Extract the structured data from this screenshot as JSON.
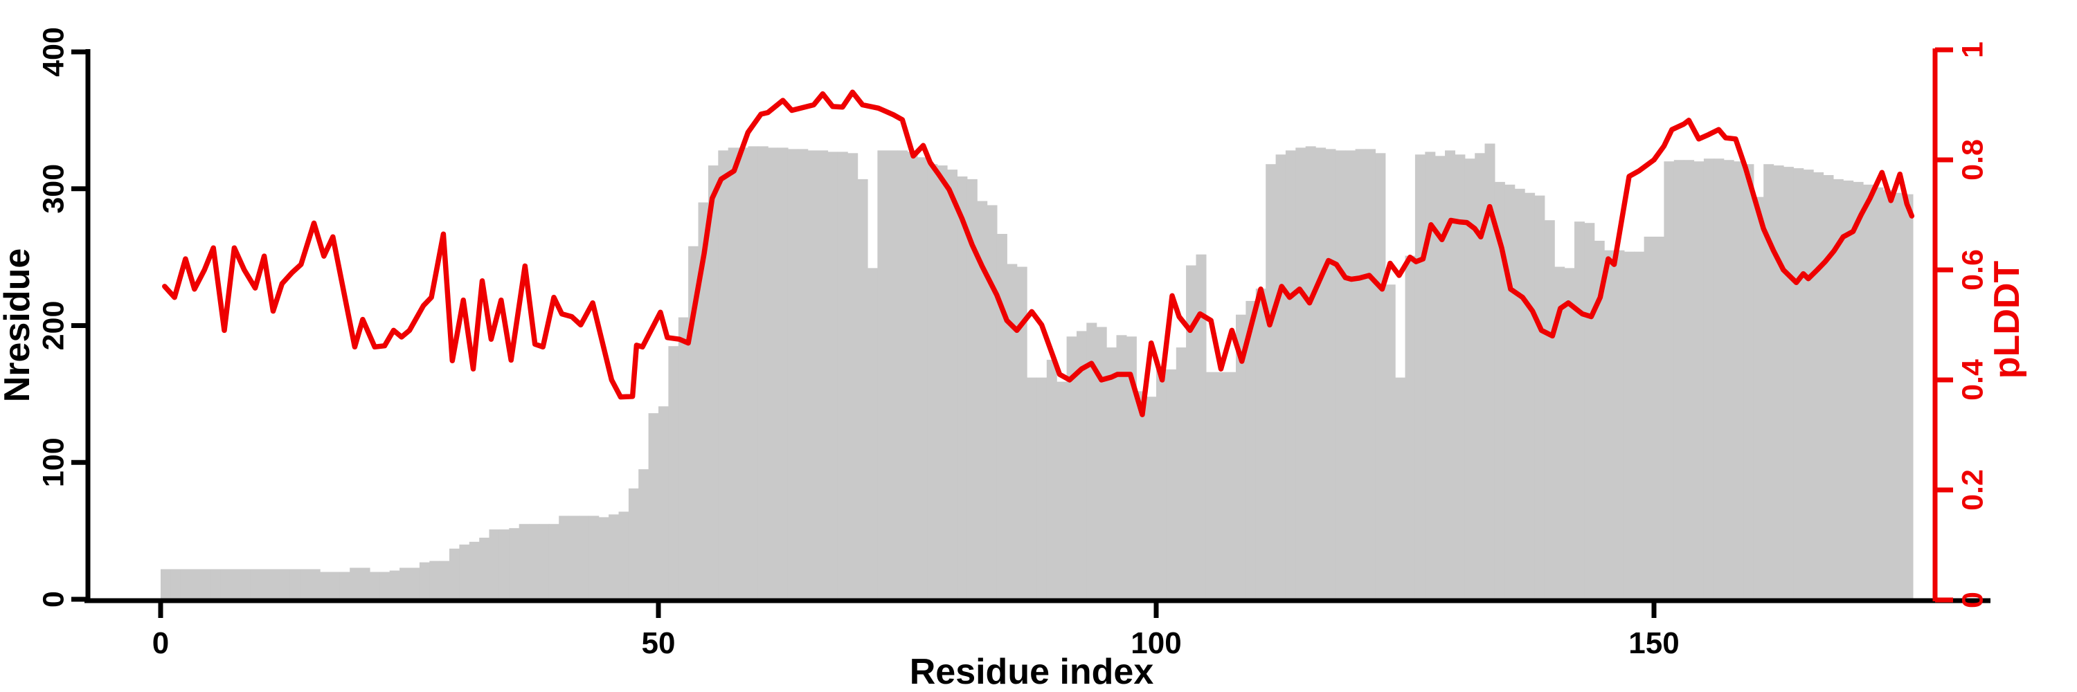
{
  "chart_data": {
    "type": "bar",
    "subtype": "dual-axis bar+line",
    "title": "",
    "xlabel": "Residue index",
    "ylabel_left": "Nresidue",
    "ylabel_right": "pLDDT",
    "x_ticks": [
      0,
      50,
      100,
      150
    ],
    "y_left_ticks": [
      "0",
      "100",
      "200",
      "300",
      "400"
    ],
    "y_right_ticks": [
      "0",
      "0.2",
      "0.4",
      "0.6",
      "0.8",
      "1"
    ],
    "xlim": [
      0,
      176
    ],
    "ylim_left": [
      0,
      400
    ],
    "ylim_right": [
      0,
      1
    ],
    "grid": false,
    "legend": "none",
    "bar_color": "#c9c9c9",
    "line_color": "#ee0000",
    "axis_color": "#000000",
    "right_axis_color": "#ee0000",
    "series": [
      {
        "name": "Nresidue",
        "type": "bar",
        "values": [
          22,
          22,
          22,
          22,
          22,
          22,
          22,
          22,
          22,
          22,
          22,
          22,
          22,
          22,
          22,
          22,
          20,
          20,
          20,
          23,
          23,
          20,
          20,
          21,
          23,
          23,
          27,
          28,
          28,
          37,
          40,
          42,
          45,
          51,
          51,
          52,
          55,
          55,
          55,
          55,
          61,
          61,
          61,
          61,
          60,
          62,
          64,
          81,
          95,
          136,
          141,
          185,
          206,
          258,
          290,
          317,
          328,
          330,
          330,
          331,
          331,
          330,
          330,
          329,
          329,
          328,
          328,
          327,
          327,
          326,
          307,
          242,
          328,
          328,
          328,
          327,
          323,
          318,
          317,
          314,
          309,
          307,
          291,
          288,
          267,
          245,
          243,
          162,
          162,
          175,
          159,
          192,
          196,
          202,
          199,
          184,
          193,
          192,
          152,
          148,
          168,
          168,
          184,
          244,
          252,
          166,
          166,
          166,
          208,
          218,
          227,
          318,
          325,
          328,
          330,
          331,
          330,
          329,
          328,
          328,
          329,
          329,
          326,
          230,
          162,
          251,
          325,
          327,
          324,
          328,
          325,
          322,
          326,
          333,
          305,
          303,
          300,
          297,
          295,
          277,
          243,
          242,
          276,
          275,
          262,
          255,
          255,
          254,
          254,
          265,
          265,
          320,
          321,
          321,
          320,
          322,
          322,
          321,
          320,
          318,
          294,
          318,
          317,
          316,
          315,
          314,
          312,
          310,
          307,
          306,
          305,
          303,
          301,
          299,
          297,
          296
        ]
      },
      {
        "name": "pLDDT",
        "type": "line",
        "points": [
          [
            0.4,
            0.57
          ],
          [
            1.4,
            0.55
          ],
          [
            2.5,
            0.62
          ],
          [
            3.4,
            0.565
          ],
          [
            4.4,
            0.6
          ],
          [
            5.3,
            0.64
          ],
          [
            6.4,
            0.49
          ],
          [
            7.4,
            0.64
          ],
          [
            8.4,
            0.6
          ],
          [
            9.5,
            0.567
          ],
          [
            10.4,
            0.625
          ],
          [
            11.3,
            0.525
          ],
          [
            12.2,
            0.575
          ],
          [
            13.2,
            0.595
          ],
          [
            14.1,
            0.61
          ],
          [
            15.4,
            0.685
          ],
          [
            16.4,
            0.625
          ],
          [
            17.3,
            0.66
          ],
          [
            19.5,
            0.46
          ],
          [
            20.3,
            0.51
          ],
          [
            21.5,
            0.46
          ],
          [
            22.5,
            0.462
          ],
          [
            23.4,
            0.49
          ],
          [
            24.2,
            0.478
          ],
          [
            25.0,
            0.49
          ],
          [
            26.4,
            0.535
          ],
          [
            27.2,
            0.55
          ],
          [
            28.4,
            0.665
          ],
          [
            29.3,
            0.435
          ],
          [
            30.4,
            0.545
          ],
          [
            31.4,
            0.42
          ],
          [
            32.3,
            0.58
          ],
          [
            33.2,
            0.474
          ],
          [
            34.2,
            0.545
          ],
          [
            35.2,
            0.436
          ],
          [
            36.6,
            0.607
          ],
          [
            37.6,
            0.465
          ],
          [
            38.4,
            0.46
          ],
          [
            39.5,
            0.55
          ],
          [
            40.3,
            0.52
          ],
          [
            41.3,
            0.515
          ],
          [
            42.2,
            0.5
          ],
          [
            43.4,
            0.54
          ],
          [
            45.3,
            0.4
          ],
          [
            46.2,
            0.369
          ],
          [
            47.4,
            0.37
          ],
          [
            47.8,
            0.463
          ],
          [
            48.4,
            0.46
          ],
          [
            50.2,
            0.523
          ],
          [
            50.9,
            0.477
          ],
          [
            52.1,
            0.474
          ],
          [
            53.0,
            0.467
          ],
          [
            54.6,
            0.63
          ],
          [
            55.4,
            0.73
          ],
          [
            56.3,
            0.765
          ],
          [
            57.6,
            0.78
          ],
          [
            59.0,
            0.85
          ],
          [
            60.3,
            0.883
          ],
          [
            61.0,
            0.886
          ],
          [
            62.5,
            0.908
          ],
          [
            63.4,
            0.89
          ],
          [
            65.6,
            0.9
          ],
          [
            66.5,
            0.92
          ],
          [
            67.5,
            0.897
          ],
          [
            68.5,
            0.896
          ],
          [
            69.5,
            0.923
          ],
          [
            70.5,
            0.9
          ],
          [
            72.1,
            0.894
          ],
          [
            73.6,
            0.882
          ],
          [
            74.5,
            0.873
          ],
          [
            75.6,
            0.807
          ],
          [
            76.6,
            0.826
          ],
          [
            77.3,
            0.795
          ],
          [
            78.1,
            0.775
          ],
          [
            79.2,
            0.746
          ],
          [
            80.5,
            0.693
          ],
          [
            81.5,
            0.646
          ],
          [
            82.5,
            0.607
          ],
          [
            84.0,
            0.554
          ],
          [
            85.0,
            0.508
          ],
          [
            86.0,
            0.49
          ],
          [
            87.5,
            0.524
          ],
          [
            88.5,
            0.5
          ],
          [
            90.3,
            0.41
          ],
          [
            91.3,
            0.4
          ],
          [
            92.5,
            0.42
          ],
          [
            93.5,
            0.43
          ],
          [
            94.5,
            0.4
          ],
          [
            95.5,
            0.405
          ],
          [
            96.1,
            0.41
          ],
          [
            97.4,
            0.41
          ],
          [
            98.6,
            0.337
          ],
          [
            99.5,
            0.467
          ],
          [
            100.6,
            0.4
          ],
          [
            101.6,
            0.553
          ],
          [
            102.3,
            0.515
          ],
          [
            103.4,
            0.49
          ],
          [
            104.4,
            0.52
          ],
          [
            105.5,
            0.508
          ],
          [
            106.5,
            0.42
          ],
          [
            107.6,
            0.49
          ],
          [
            108.6,
            0.434
          ],
          [
            110.5,
            0.565
          ],
          [
            111.4,
            0.5
          ],
          [
            112.6,
            0.57
          ],
          [
            113.4,
            0.55
          ],
          [
            114.4,
            0.565
          ],
          [
            115.4,
            0.54
          ],
          [
            116.8,
            0.597
          ],
          [
            117.3,
            0.617
          ],
          [
            118.1,
            0.61
          ],
          [
            119.0,
            0.586
          ],
          [
            119.6,
            0.583
          ],
          [
            120.4,
            0.585
          ],
          [
            121.4,
            0.59
          ],
          [
            122.7,
            0.565
          ],
          [
            123.5,
            0.612
          ],
          [
            124.4,
            0.59
          ],
          [
            125.5,
            0.623
          ],
          [
            126.1,
            0.615
          ],
          [
            126.8,
            0.62
          ],
          [
            127.6,
            0.682
          ],
          [
            128.7,
            0.655
          ],
          [
            129.6,
            0.69
          ],
          [
            130.5,
            0.687
          ],
          [
            131.2,
            0.686
          ],
          [
            132.0,
            0.675
          ],
          [
            132.6,
            0.66
          ],
          [
            133.5,
            0.715
          ],
          [
            134.7,
            0.64
          ],
          [
            135.6,
            0.565
          ],
          [
            136.8,
            0.55
          ],
          [
            137.8,
            0.525
          ],
          [
            138.7,
            0.49
          ],
          [
            139.8,
            0.48
          ],
          [
            140.6,
            0.53
          ],
          [
            141.4,
            0.54
          ],
          [
            142.8,
            0.52
          ],
          [
            143.7,
            0.515
          ],
          [
            144.6,
            0.55
          ],
          [
            145.4,
            0.62
          ],
          [
            146.0,
            0.61
          ],
          [
            147.5,
            0.77
          ],
          [
            148.5,
            0.78
          ],
          [
            150.0,
            0.8
          ],
          [
            151.0,
            0.825
          ],
          [
            151.8,
            0.855
          ],
          [
            153.0,
            0.865
          ],
          [
            153.5,
            0.872
          ],
          [
            154.5,
            0.838
          ],
          [
            155.5,
            0.846
          ],
          [
            156.5,
            0.855
          ],
          [
            157.2,
            0.84
          ],
          [
            158.2,
            0.838
          ],
          [
            159.2,
            0.785
          ],
          [
            160.1,
            0.73
          ],
          [
            161.0,
            0.675
          ],
          [
            162.0,
            0.635
          ],
          [
            163.0,
            0.6
          ],
          [
            164.3,
            0.577
          ],
          [
            165.0,
            0.593
          ],
          [
            165.5,
            0.584
          ],
          [
            166.4,
            0.6
          ],
          [
            167.2,
            0.615
          ],
          [
            168.1,
            0.635
          ],
          [
            169.0,
            0.66
          ],
          [
            170.0,
            0.67
          ],
          [
            170.8,
            0.7
          ],
          [
            171.7,
            0.73
          ],
          [
            172.9,
            0.777
          ],
          [
            173.8,
            0.726
          ],
          [
            174.7,
            0.774
          ],
          [
            175.4,
            0.72
          ],
          [
            175.9,
            0.698
          ]
        ]
      }
    ]
  }
}
